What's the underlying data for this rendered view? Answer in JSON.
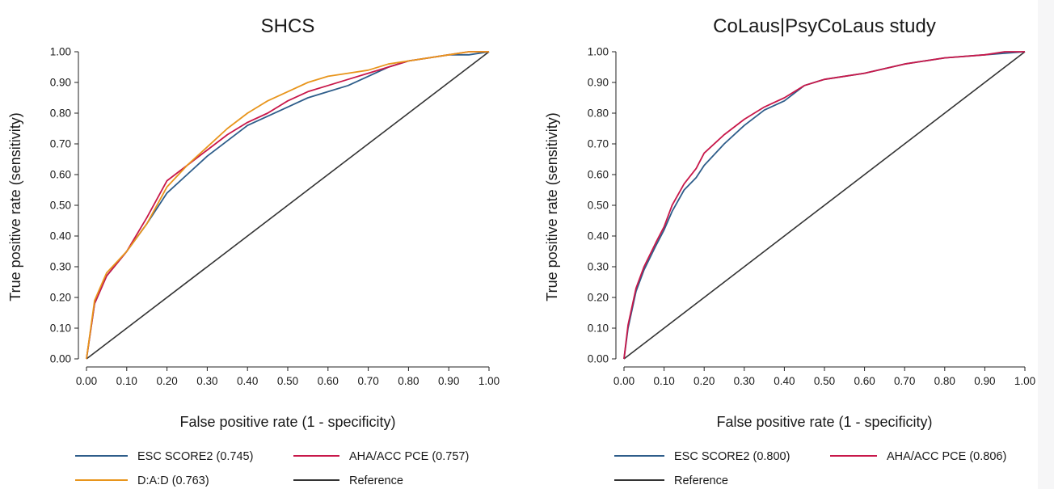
{
  "chart_data": [
    {
      "type": "line",
      "title": "SHCS",
      "xlabel": "False positive rate (1 - specificity)",
      "ylabel": "True positive rate (sensitivity)",
      "xlim": [
        0,
        1
      ],
      "ylim": [
        0,
        1
      ],
      "x_ticks": [
        "0.00",
        "0.10",
        "0.20",
        "0.30",
        "0.40",
        "0.50",
        "0.60",
        "0.70",
        "0.80",
        "0.90",
        "1.00"
      ],
      "y_ticks": [
        "0.00",
        "0.10",
        "0.20",
        "0.30",
        "0.40",
        "0.50",
        "0.60",
        "0.70",
        "0.80",
        "0.90",
        "1.00"
      ],
      "grid": false,
      "legend_position": "bottom",
      "series": [
        {
          "name": "ESC SCORE2 (0.745)",
          "color": "#2e5d8a",
          "x": [
            0,
            0.02,
            0.05,
            0.1,
            0.15,
            0.2,
            0.25,
            0.3,
            0.35,
            0.4,
            0.45,
            0.5,
            0.55,
            0.6,
            0.65,
            0.7,
            0.75,
            0.8,
            0.85,
            0.9,
            0.95,
            1
          ],
          "y": [
            0,
            0.18,
            0.27,
            0.35,
            0.44,
            0.54,
            0.6,
            0.66,
            0.71,
            0.76,
            0.79,
            0.82,
            0.85,
            0.87,
            0.89,
            0.92,
            0.95,
            0.97,
            0.98,
            0.99,
            0.99,
            1
          ]
        },
        {
          "name": "AHA/ACC PCE (0.757)",
          "color": "#c8184a",
          "x": [
            0,
            0.02,
            0.05,
            0.1,
            0.15,
            0.2,
            0.25,
            0.3,
            0.35,
            0.4,
            0.45,
            0.5,
            0.55,
            0.6,
            0.65,
            0.7,
            0.75,
            0.8,
            0.85,
            0.9,
            0.95,
            1
          ],
          "y": [
            0,
            0.18,
            0.27,
            0.35,
            0.46,
            0.58,
            0.63,
            0.68,
            0.73,
            0.77,
            0.8,
            0.84,
            0.87,
            0.89,
            0.91,
            0.93,
            0.95,
            0.97,
            0.98,
            0.99,
            1,
            1
          ]
        },
        {
          "name": "D:A:D (0.763)",
          "color": "#e8951c",
          "x": [
            0,
            0.02,
            0.05,
            0.1,
            0.15,
            0.2,
            0.25,
            0.3,
            0.35,
            0.4,
            0.45,
            0.5,
            0.55,
            0.6,
            0.65,
            0.7,
            0.75,
            0.8,
            0.85,
            0.9,
            0.95,
            1
          ],
          "y": [
            0,
            0.19,
            0.28,
            0.35,
            0.44,
            0.56,
            0.63,
            0.69,
            0.75,
            0.8,
            0.84,
            0.87,
            0.9,
            0.92,
            0.93,
            0.94,
            0.96,
            0.97,
            0.98,
            0.99,
            1,
            1
          ]
        },
        {
          "name": "Reference",
          "color": "#333333",
          "x": [
            0,
            1
          ],
          "y": [
            0,
            1
          ]
        }
      ]
    },
    {
      "type": "line",
      "title": "CoLaus|PsyCoLaus study",
      "xlabel": "False positive rate (1 - specificity)",
      "ylabel": "True positive rate (sensitivity)",
      "xlim": [
        0,
        1
      ],
      "ylim": [
        0,
        1
      ],
      "x_ticks": [
        "0.00",
        "0.10",
        "0.20",
        "0.30",
        "0.40",
        "0.50",
        "0.60",
        "0.70",
        "0.80",
        "0.90",
        "1.00"
      ],
      "y_ticks": [
        "0.00",
        "0.10",
        "0.20",
        "0.30",
        "0.40",
        "0.50",
        "0.60",
        "0.70",
        "0.80",
        "0.90",
        "1.00"
      ],
      "grid": false,
      "legend_position": "bottom",
      "series": [
        {
          "name": "ESC SCORE2 (0.800)",
          "color": "#2e5d8a",
          "x": [
            0,
            0.01,
            0.03,
            0.05,
            0.08,
            0.1,
            0.12,
            0.15,
            0.18,
            0.2,
            0.25,
            0.3,
            0.35,
            0.4,
            0.45,
            0.5,
            0.6,
            0.7,
            0.8,
            0.9,
            0.95,
            1
          ],
          "y": [
            0,
            0.1,
            0.22,
            0.29,
            0.37,
            0.42,
            0.48,
            0.55,
            0.59,
            0.63,
            0.7,
            0.76,
            0.81,
            0.84,
            0.89,
            0.91,
            0.93,
            0.96,
            0.98,
            0.99,
            0.995,
            1
          ]
        },
        {
          "name": "AHA/ACC PCE (0.806)",
          "color": "#c8184a",
          "x": [
            0,
            0.01,
            0.03,
            0.05,
            0.08,
            0.1,
            0.12,
            0.15,
            0.18,
            0.2,
            0.25,
            0.3,
            0.35,
            0.4,
            0.45,
            0.5,
            0.6,
            0.7,
            0.8,
            0.9,
            0.95,
            1
          ],
          "y": [
            0,
            0.11,
            0.23,
            0.3,
            0.38,
            0.43,
            0.5,
            0.57,
            0.62,
            0.67,
            0.73,
            0.78,
            0.82,
            0.85,
            0.89,
            0.91,
            0.93,
            0.96,
            0.98,
            0.99,
            1,
            1
          ]
        },
        {
          "name": "Reference",
          "color": "#333333",
          "x": [
            0,
            1
          ],
          "y": [
            0,
            1
          ]
        }
      ]
    }
  ]
}
